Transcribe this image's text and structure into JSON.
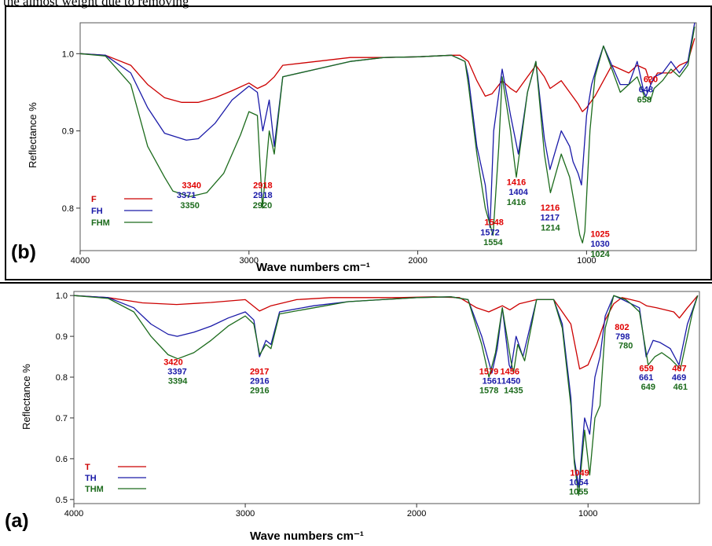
{
  "header_text": "the  almost  weight  due  to  removing",
  "chart_data": [
    {
      "type": "line",
      "panel_label": "(b)",
      "xlabel": "Wave numbers cm⁻¹",
      "ylabel": "Reflectance %",
      "xlim": [
        4000,
        350
      ],
      "x_reversed": true,
      "ylim": [
        0.745,
        1.04
      ],
      "xticks": [
        4000,
        3000,
        2000,
        1000
      ],
      "yticks": [
        0.8,
        0.9,
        1.0
      ],
      "ytick_labels": [
        "0.8",
        "0.9",
        "1.0"
      ],
      "grid": false,
      "legend_position": "bottom-left",
      "series": [
        {
          "name": "F",
          "color": "#cc0000",
          "x": [
            4000,
            3850,
            3700,
            3600,
            3500,
            3400,
            3300,
            3200,
            3100,
            3000,
            2950,
            2900,
            2850,
            2800,
            2600,
            2400,
            2200,
            2000,
            1800,
            1750,
            1700,
            1650,
            1600,
            1560,
            1500,
            1450,
            1416,
            1350,
            1300,
            1250,
            1216,
            1150,
            1100,
            1050,
            1025,
            1000,
            950,
            900,
            850,
            800,
            750,
            700,
            650,
            620,
            580,
            500,
            450,
            400,
            360
          ],
          "y": [
            1.0,
            0.998,
            0.985,
            0.96,
            0.943,
            0.937,
            0.937,
            0.943,
            0.952,
            0.962,
            0.955,
            0.96,
            0.97,
            0.985,
            0.99,
            0.995,
            0.995,
            0.996,
            0.998,
            0.998,
            0.99,
            0.965,
            0.945,
            0.948,
            0.965,
            0.955,
            0.95,
            0.97,
            0.985,
            0.97,
            0.955,
            0.965,
            0.95,
            0.935,
            0.925,
            0.93,
            0.945,
            0.965,
            0.985,
            0.98,
            0.975,
            0.985,
            0.98,
            0.96,
            0.975,
            0.975,
            0.985,
            0.99,
            1.02
          ]
        },
        {
          "name": "FH",
          "color": "#1a1aa8",
          "x": [
            4000,
            3850,
            3700,
            3600,
            3500,
            3371,
            3300,
            3200,
            3100,
            3000,
            2950,
            2918,
            2880,
            2850,
            2800,
            2600,
            2400,
            2200,
            2000,
            1800,
            1720,
            1700,
            1650,
            1600,
            1572,
            1550,
            1500,
            1450,
            1404,
            1350,
            1300,
            1250,
            1217,
            1150,
            1100,
            1080,
            1050,
            1030,
            1000,
            970,
            930,
            900,
            850,
            800,
            750,
            700,
            660,
            648,
            600,
            550,
            500,
            450,
            400,
            360
          ],
          "y": [
            1.0,
            0.998,
            0.975,
            0.93,
            0.897,
            0.888,
            0.89,
            0.91,
            0.94,
            0.958,
            0.95,
            0.9,
            0.94,
            0.88,
            0.97,
            0.98,
            0.99,
            0.995,
            0.996,
            0.998,
            0.99,
            0.97,
            0.88,
            0.83,
            0.775,
            0.9,
            0.98,
            0.92,
            0.87,
            0.95,
            0.99,
            0.89,
            0.85,
            0.9,
            0.88,
            0.86,
            0.845,
            0.83,
            0.92,
            0.96,
            0.99,
            1.01,
            0.985,
            0.96,
            0.96,
            0.99,
            0.95,
            0.945,
            0.97,
            0.975,
            0.99,
            0.975,
            0.99,
            1.04
          ]
        },
        {
          "name": "FHM",
          "color": "#1c6b1c",
          "x": [
            4000,
            3850,
            3700,
            3600,
            3500,
            3450,
            3350,
            3250,
            3150,
            3050,
            3000,
            2950,
            2920,
            2880,
            2850,
            2800,
            2600,
            2400,
            2200,
            2000,
            1800,
            1720,
            1700,
            1650,
            1600,
            1554,
            1520,
            1500,
            1450,
            1416,
            1350,
            1300,
            1250,
            1214,
            1150,
            1100,
            1060,
            1040,
            1024,
            1010,
            980,
            950,
            900,
            850,
            800,
            750,
            700,
            658,
            620,
            600,
            550,
            500,
            450,
            400,
            360
          ],
          "y": [
            1.0,
            0.997,
            0.96,
            0.88,
            0.84,
            0.822,
            0.815,
            0.82,
            0.845,
            0.895,
            0.925,
            0.92,
            0.8,
            0.9,
            0.87,
            0.97,
            0.98,
            0.99,
            0.995,
            0.996,
            0.998,
            0.99,
            0.96,
            0.87,
            0.8,
            0.765,
            0.88,
            0.97,
            0.9,
            0.84,
            0.95,
            0.99,
            0.87,
            0.82,
            0.87,
            0.84,
            0.79,
            0.765,
            0.755,
            0.77,
            0.9,
            0.97,
            1.01,
            0.98,
            0.95,
            0.96,
            0.97,
            0.945,
            0.94,
            0.955,
            0.965,
            0.98,
            0.97,
            0.985,
            1.035
          ]
        }
      ],
      "annotations": [
        {
          "x": 3340,
          "y": 0.826,
          "text": "3340",
          "color": "#e00000"
        },
        {
          "x": 3371,
          "y": 0.813,
          "text": "3371",
          "color": "#1a1aa8"
        },
        {
          "x": 3350,
          "y": 0.8,
          "text": "3350",
          "color": "#1c6b1c"
        },
        {
          "x": 2918,
          "y": 0.826,
          "text": "2918",
          "color": "#e00000"
        },
        {
          "x": 2918,
          "y": 0.813,
          "text": "2918",
          "color": "#1a1aa8"
        },
        {
          "x": 2920,
          "y": 0.8,
          "text": "2920",
          "color": "#1c6b1c"
        },
        {
          "x": 1548,
          "y": 0.778,
          "text": "1548",
          "color": "#e00000"
        },
        {
          "x": 1572,
          "y": 0.765,
          "text": "1572",
          "color": "#1a1aa8"
        },
        {
          "x": 1554,
          "y": 0.752,
          "text": "1554",
          "color": "#1c6b1c"
        },
        {
          "x": 1416,
          "y": 0.83,
          "text": "1416",
          "color": "#e00000"
        },
        {
          "x": 1404,
          "y": 0.817,
          "text": "1404",
          "color": "#1a1aa8"
        },
        {
          "x": 1416,
          "y": 0.804,
          "text": "1416",
          "color": "#1c6b1c"
        },
        {
          "x": 1216,
          "y": 0.797,
          "text": "1216",
          "color": "#e00000"
        },
        {
          "x": 1217,
          "y": 0.784,
          "text": "1217",
          "color": "#1a1aa8"
        },
        {
          "x": 1214,
          "y": 0.771,
          "text": "1214",
          "color": "#1c6b1c"
        },
        {
          "x": 920,
          "y": 0.763,
          "text": "1025",
          "color": "#e00000"
        },
        {
          "x": 920,
          "y": 0.75,
          "text": "1030",
          "color": "#1a1aa8"
        },
        {
          "x": 920,
          "y": 0.737,
          "text": "1024",
          "color": "#1c6b1c"
        },
        {
          "x": 620,
          "y": 0.963,
          "text": "620",
          "color": "#e00000"
        },
        {
          "x": 648,
          "y": 0.95,
          "text": "648",
          "color": "#1a1aa8"
        },
        {
          "x": 658,
          "y": 0.937,
          "text": "658",
          "color": "#1c6b1c"
        }
      ]
    },
    {
      "type": "line",
      "panel_label": "(a)",
      "xlabel": "Wave numbers cm⁻¹",
      "ylabel": "Reflectance %",
      "xlim": [
        4000,
        350
      ],
      "x_reversed": true,
      "ylim": [
        0.49,
        1.01
      ],
      "xticks": [
        4000,
        3000,
        2000,
        1000
      ],
      "yticks": [
        0.5,
        0.6,
        0.7,
        0.8,
        0.9,
        1.0
      ],
      "ytick_labels": [
        "0.5",
        "0.6",
        "0.7",
        "0.8",
        "0.9",
        "1.0"
      ],
      "grid": false,
      "legend_position": "bottom-left",
      "series": [
        {
          "name": "T",
          "color": "#cc0000",
          "x": [
            4000,
            3800,
            3600,
            3400,
            3200,
            3000,
            2917,
            2850,
            2700,
            2500,
            2300,
            2100,
            1900,
            1750,
            1650,
            1579,
            1500,
            1456,
            1400,
            1300,
            1200,
            1100,
            1049,
            1000,
            950,
            900,
            850,
            802,
            750,
            700,
            659,
            600,
            550,
            500,
            467,
            420,
            380,
            360
          ],
          "y": [
            1.0,
            0.995,
            0.982,
            0.978,
            0.983,
            0.99,
            0.962,
            0.975,
            0.99,
            0.995,
            0.995,
            0.995,
            0.997,
            0.995,
            0.97,
            0.96,
            0.975,
            0.965,
            0.98,
            0.99,
            0.99,
            0.93,
            0.82,
            0.83,
            0.88,
            0.94,
            0.98,
            0.995,
            0.99,
            0.985,
            0.975,
            0.97,
            0.965,
            0.96,
            0.945,
            0.97,
            0.99,
            1.0
          ]
        },
        {
          "name": "TH",
          "color": "#1a1aa8",
          "x": [
            4000,
            3800,
            3650,
            3550,
            3450,
            3397,
            3300,
            3200,
            3100,
            3000,
            2950,
            2917,
            2880,
            2850,
            2800,
            2600,
            2400,
            2200,
            2000,
            1800,
            1700,
            1620,
            1561,
            1530,
            1500,
            1460,
            1450,
            1420,
            1380,
            1300,
            1200,
            1150,
            1100,
            1080,
            1054,
            1020,
            990,
            960,
            930,
            900,
            850,
            798,
            750,
            700,
            661,
            620,
            580,
            520,
            469,
            420,
            390,
            360
          ],
          "y": [
            1.0,
            0.995,
            0.97,
            0.93,
            0.905,
            0.9,
            0.91,
            0.925,
            0.945,
            0.96,
            0.94,
            0.85,
            0.89,
            0.88,
            0.96,
            0.975,
            0.985,
            0.99,
            0.995,
            0.997,
            0.99,
            0.9,
            0.81,
            0.87,
            0.97,
            0.83,
            0.82,
            0.9,
            0.85,
            0.99,
            0.99,
            0.93,
            0.75,
            0.6,
            0.53,
            0.7,
            0.66,
            0.8,
            0.85,
            0.95,
            1.0,
            0.99,
            0.98,
            0.97,
            0.85,
            0.89,
            0.885,
            0.87,
            0.83,
            0.93,
            0.965,
            1.0
          ]
        },
        {
          "name": "THM",
          "color": "#1c6b1c",
          "x": [
            4000,
            3800,
            3650,
            3550,
            3450,
            3394,
            3300,
            3200,
            3100,
            3000,
            2950,
            2916,
            2880,
            2850,
            2800,
            2600,
            2400,
            2200,
            2000,
            1800,
            1700,
            1620,
            1578,
            1540,
            1500,
            1450,
            1435,
            1410,
            1370,
            1300,
            1200,
            1150,
            1100,
            1080,
            1055,
            1020,
            990,
            960,
            930,
            900,
            850,
            780,
            750,
            700,
            649,
            610,
            570,
            520,
            461,
            420,
            390,
            360
          ],
          "y": [
            1.0,
            0.993,
            0.96,
            0.9,
            0.855,
            0.845,
            0.86,
            0.89,
            0.925,
            0.95,
            0.93,
            0.855,
            0.88,
            0.87,
            0.955,
            0.97,
            0.985,
            0.99,
            0.995,
            0.997,
            0.99,
            0.88,
            0.8,
            0.86,
            0.97,
            0.84,
            0.81,
            0.88,
            0.84,
            0.99,
            0.99,
            0.92,
            0.73,
            0.59,
            0.51,
            0.67,
            0.56,
            0.7,
            0.73,
            0.92,
            1.0,
            0.99,
            0.98,
            0.96,
            0.83,
            0.85,
            0.86,
            0.845,
            0.82,
            0.9,
            0.96,
            1.0
          ]
        }
      ],
      "annotations": [
        {
          "x": 3420,
          "y": 0.83,
          "text": "3420",
          "color": "#e00000"
        },
        {
          "x": 3397,
          "y": 0.807,
          "text": "3397",
          "color": "#1a1aa8"
        },
        {
          "x": 3394,
          "y": 0.784,
          "text": "3394",
          "color": "#1c6b1c"
        },
        {
          "x": 2917,
          "y": 0.807,
          "text": "2917",
          "color": "#e00000"
        },
        {
          "x": 2916,
          "y": 0.784,
          "text": "2916",
          "color": "#1a1aa8"
        },
        {
          "x": 2916,
          "y": 0.761,
          "text": "2916",
          "color": "#1c6b1c"
        },
        {
          "x": 1579,
          "y": 0.807,
          "text": "1579",
          "color": "#e00000"
        },
        {
          "x": 1561,
          "y": 0.784,
          "text": "1561",
          "color": "#1a1aa8"
        },
        {
          "x": 1578,
          "y": 0.761,
          "text": "1578",
          "color": "#1c6b1c"
        },
        {
          "x": 1456,
          "y": 0.807,
          "text": "1456",
          "color": "#e00000"
        },
        {
          "x": 1450,
          "y": 0.784,
          "text": "1450",
          "color": "#1a1aa8"
        },
        {
          "x": 1435,
          "y": 0.761,
          "text": "1435",
          "color": "#1c6b1c"
        },
        {
          "x": 1049,
          "y": 0.558,
          "text": "1049",
          "color": "#e00000"
        },
        {
          "x": 1054,
          "y": 0.535,
          "text": "1054",
          "color": "#1a1aa8"
        },
        {
          "x": 1055,
          "y": 0.512,
          "text": "1055",
          "color": "#1c6b1c"
        },
        {
          "x": 802,
          "y": 0.916,
          "text": "802",
          "color": "#e00000"
        },
        {
          "x": 798,
          "y": 0.893,
          "text": "798",
          "color": "#1a1aa8"
        },
        {
          "x": 780,
          "y": 0.87,
          "text": "780",
          "color": "#1c6b1c"
        },
        {
          "x": 659,
          "y": 0.815,
          "text": "659",
          "color": "#e00000"
        },
        {
          "x": 661,
          "y": 0.792,
          "text": "661",
          "color": "#1a1aa8"
        },
        {
          "x": 649,
          "y": 0.769,
          "text": "649",
          "color": "#1c6b1c"
        },
        {
          "x": 467,
          "y": 0.815,
          "text": "467",
          "color": "#e00000"
        },
        {
          "x": 469,
          "y": 0.792,
          "text": "469",
          "color": "#1a1aa8"
        },
        {
          "x": 461,
          "y": 0.769,
          "text": "461",
          "color": "#1c6b1c"
        }
      ]
    }
  ]
}
